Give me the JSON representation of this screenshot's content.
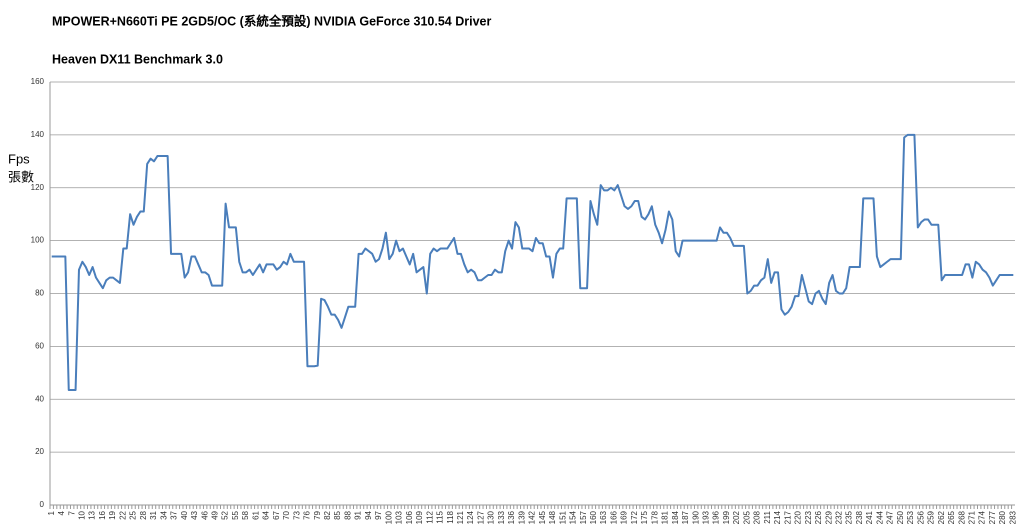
{
  "chart_data": {
    "type": "line",
    "title": "MPOWER+N660Ti PE 2GD5/OC (系統全預設) NVIDIA GeForce 310.54 Driver",
    "subtitle": "Heaven DX11 Benchmark 3.0",
    "y_label": [
      "Fps",
      "張數"
    ],
    "color": "#4a7ebb",
    "grid": true,
    "ylim": [
      0,
      160
    ],
    "yticks": [
      0,
      20,
      40,
      60,
      80,
      100,
      120,
      140,
      160
    ],
    "categories": [
      1,
      null,
      null,
      4,
      null,
      null,
      7,
      null,
      null,
      10,
      null,
      null,
      13,
      null,
      null,
      16,
      null,
      null,
      19,
      null,
      null,
      22,
      null,
      null,
      25,
      null,
      null,
      28,
      null,
      null,
      31,
      null,
      null,
      34,
      null,
      null,
      37,
      null,
      null,
      40,
      null,
      null,
      43,
      null,
      null,
      46,
      null,
      null,
      49,
      null,
      null,
      52,
      null,
      null,
      55,
      null,
      null,
      58,
      null,
      null,
      61,
      null,
      null,
      64,
      null,
      null,
      67,
      null,
      null,
      70,
      null,
      null,
      73,
      null,
      null,
      76,
      null,
      null,
      79,
      null,
      null,
      82,
      null,
      null,
      85,
      null,
      null,
      88,
      null,
      null,
      91,
      null,
      null,
      94,
      null,
      null,
      97,
      null,
      null,
      100,
      null,
      null,
      103,
      null,
      null,
      106,
      null,
      null,
      109,
      null,
      null,
      112,
      null,
      null,
      115,
      null,
      null,
      118,
      null,
      null,
      121,
      null,
      null,
      124,
      null,
      null,
      127,
      null,
      null,
      130,
      null,
      null,
      133,
      null,
      null,
      136,
      null,
      null,
      139,
      null,
      null,
      142,
      null,
      null,
      145,
      null,
      null,
      148,
      null,
      null,
      151,
      null,
      null,
      154,
      null,
      null,
      157,
      null,
      null,
      160,
      null,
      null,
      163,
      null,
      null,
      166,
      null,
      null,
      169,
      null,
      null,
      172,
      null,
      null,
      175,
      null,
      null,
      178,
      null,
      null,
      181,
      null,
      null,
      184,
      null,
      null,
      187,
      null,
      null,
      190,
      null,
      null,
      193,
      null,
      null,
      196,
      null,
      null,
      199,
      null,
      null,
      202,
      null,
      null,
      205,
      null,
      null,
      208,
      null,
      null,
      211,
      null,
      null,
      214,
      null,
      null,
      217,
      null,
      null,
      220,
      null,
      null,
      223,
      null,
      null,
      226,
      null,
      null,
      229,
      null,
      null,
      232,
      null,
      null,
      235,
      null,
      null,
      238,
      null,
      null,
      241,
      null,
      null,
      244,
      null,
      null,
      247,
      null,
      null,
      250,
      null,
      null,
      253,
      null,
      null,
      256,
      null,
      null,
      259,
      null,
      null,
      262,
      null,
      null,
      265,
      null,
      null,
      268,
      null,
      null,
      271,
      null,
      null,
      274,
      null,
      null,
      277,
      null,
      null,
      280,
      null,
      null,
      283
    ],
    "values": [
      94,
      94,
      94,
      94,
      94,
      43.5,
      43.5,
      43.5,
      89,
      92,
      90,
      87,
      90,
      86,
      84,
      82,
      85,
      86,
      86,
      85,
      84,
      97,
      97,
      110,
      106,
      109,
      111,
      111,
      129,
      131,
      130,
      132,
      132,
      132,
      132,
      95,
      95,
      95,
      95,
      86,
      88,
      94,
      94,
      91,
      88,
      88,
      87,
      83,
      83,
      83,
      83,
      114,
      105,
      105,
      105,
      92,
      88,
      88,
      89,
      87,
      89,
      91,
      88,
      91,
      91,
      91,
      89,
      90,
      92,
      91,
      95,
      92,
      92,
      92,
      92,
      52.5,
      52.5,
      52.5,
      52.7,
      78,
      77.5,
      75,
      72,
      72,
      70,
      67,
      71,
      75,
      75,
      75,
      95,
      95,
      97,
      96,
      95,
      92,
      93,
      97,
      103,
      93,
      95,
      100,
      96,
      97,
      94,
      91,
      95,
      88,
      89,
      90,
      80,
      95,
      97,
      96,
      97,
      97,
      97,
      99,
      101,
      95,
      95,
      91,
      88,
      89,
      88,
      85,
      85,
      86,
      87,
      87,
      89,
      88,
      88,
      96,
      100,
      97,
      107,
      105,
      97,
      97,
      97,
      96,
      101,
      99,
      99,
      94,
      94,
      86,
      95,
      97,
      97,
      116,
      116,
      116,
      116,
      82,
      82,
      82,
      115,
      110,
      106,
      121,
      119,
      119,
      120,
      119,
      121,
      117,
      113,
      112,
      113,
      115,
      115,
      109,
      108,
      110,
      113,
      106,
      103,
      99,
      104,
      111,
      108,
      96,
      94,
      100,
      100,
      100,
      100,
      100,
      100,
      100,
      100,
      100,
      100,
      100,
      105,
      103,
      103,
      101,
      98,
      98,
      98,
      98,
      80,
      81,
      83,
      83,
      85,
      86,
      93,
      84,
      88,
      88,
      74,
      72,
      73,
      75,
      79,
      79,
      87,
      82,
      77,
      76,
      80,
      81,
      78,
      76,
      84,
      87,
      81,
      80,
      80,
      82,
      90,
      90,
      90,
      90,
      116,
      116,
      116,
      116,
      94,
      90,
      91,
      92,
      93,
      93,
      93,
      93,
      139,
      140,
      140,
      140,
      105,
      107,
      108,
      108,
      106,
      106,
      106,
      85,
      87,
      87,
      87,
      87,
      87,
      87,
      91,
      91,
      86,
      92,
      91,
      89,
      88,
      86,
      83,
      85,
      87,
      87,
      87,
      87,
      87
    ]
  }
}
